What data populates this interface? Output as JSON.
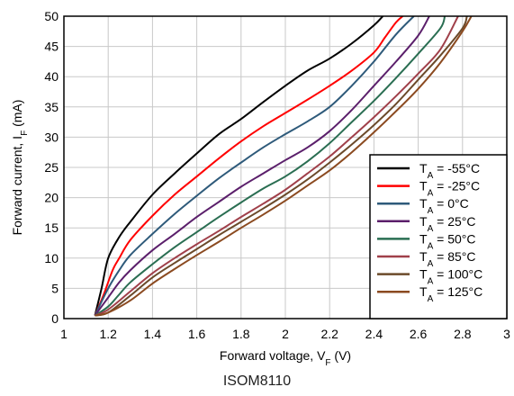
{
  "chart_data": {
    "type": "line",
    "xlabel": "Forward voltage, VF (V)",
    "ylabel": "Forward current, IF (mA)",
    "xlabel_parts": [
      "Forward voltage, V",
      "F",
      " (V)"
    ],
    "ylabel_parts": [
      "Forward current, I",
      "F",
      " (mA)"
    ],
    "xlim": [
      1,
      3
    ],
    "ylim": [
      0,
      50
    ],
    "xticks": [
      "1",
      "1.2",
      "1.4",
      "1.6",
      "1.8",
      "2",
      "2.2",
      "2.4",
      "2.6",
      "2.8",
      "3"
    ],
    "yticks": [
      "0",
      "5",
      "10",
      "15",
      "20",
      "25",
      "30",
      "35",
      "40",
      "45",
      "50"
    ],
    "grid": true,
    "legend_position": "bottom-right",
    "series": [
      {
        "name": "TA = -55°C",
        "label_parts": [
          "T",
          "A",
          " = -55°C"
        ],
        "color": "#000000",
        "x": [
          1.14,
          1.17,
          1.2,
          1.25,
          1.3,
          1.4,
          1.5,
          1.6,
          1.7,
          1.8,
          1.9,
          2.0,
          2.1,
          2.2,
          2.3,
          2.4,
          2.44
        ],
        "y": [
          0.5,
          5,
          10,
          13.5,
          16,
          20.5,
          24,
          27.3,
          30.5,
          33,
          35.8,
          38.5,
          41,
          43,
          45.5,
          48.5,
          50
        ]
      },
      {
        "name": "TA = -25°C",
        "label_parts": [
          "T",
          "A",
          " = -25°C"
        ],
        "color": "#ff0000",
        "x": [
          1.14,
          1.18,
          1.22,
          1.25,
          1.3,
          1.4,
          1.5,
          1.6,
          1.7,
          1.8,
          1.9,
          2.0,
          2.1,
          2.2,
          2.3,
          2.4,
          2.45,
          2.5,
          2.53
        ],
        "y": [
          0.5,
          4,
          8,
          10,
          13,
          17,
          20.5,
          23.5,
          26.5,
          29.3,
          31.8,
          34,
          36.2,
          38.5,
          41,
          44,
          46.5,
          49,
          50
        ]
      },
      {
        "name": "TA = 0°C",
        "label_parts": [
          "T",
          "A",
          " = 0°C"
        ],
        "color": "#2e5a7a",
        "x": [
          1.14,
          1.2,
          1.25,
          1.3,
          1.4,
          1.5,
          1.6,
          1.7,
          1.8,
          1.9,
          2.0,
          2.1,
          2.2,
          2.3,
          2.4,
          2.5,
          2.58
        ],
        "y": [
          0.5,
          5,
          8,
          10.5,
          14,
          17.3,
          20.3,
          23.2,
          25.8,
          28.3,
          30.5,
          32.6,
          35,
          38.5,
          42.5,
          47,
          50
        ]
      },
      {
        "name": "TA = 25°C",
        "label_parts": [
          "T",
          "A",
          " = 25°C"
        ],
        "color": "#5b1f6b",
        "x": [
          1.14,
          1.2,
          1.25,
          1.3,
          1.4,
          1.5,
          1.6,
          1.7,
          1.8,
          1.9,
          2.0,
          2.1,
          2.2,
          2.3,
          2.4,
          2.5,
          2.6,
          2.65
        ],
        "y": [
          0.5,
          3.5,
          6,
          8,
          11.3,
          14,
          16.8,
          19.3,
          21.8,
          24,
          26.2,
          28.3,
          31,
          34.5,
          38.5,
          42.5,
          46.8,
          50
        ]
      },
      {
        "name": "TA = 50°C",
        "label_parts": [
          "T",
          "A",
          " = 50°C"
        ],
        "color": "#2a6e52",
        "x": [
          1.14,
          1.2,
          1.25,
          1.3,
          1.4,
          1.5,
          1.6,
          1.7,
          1.8,
          1.9,
          2.0,
          2.1,
          2.2,
          2.3,
          2.4,
          2.5,
          2.6,
          2.7,
          2.72
        ],
        "y": [
          0.5,
          2,
          4,
          6,
          9,
          11.8,
          14.3,
          16.8,
          19.2,
          21.5,
          23.5,
          26,
          29,
          32.5,
          36,
          39.8,
          43.8,
          48,
          50
        ]
      },
      {
        "name": "TA = 85°C",
        "label_parts": [
          "T",
          "A",
          " = 85°C"
        ],
        "color": "#a0404a",
        "x": [
          1.14,
          1.2,
          1.3,
          1.4,
          1.5,
          1.6,
          1.7,
          1.8,
          1.9,
          2.0,
          2.1,
          2.2,
          2.3,
          2.4,
          2.5,
          2.6,
          2.7,
          2.78
        ],
        "y": [
          0.5,
          1.5,
          4.5,
          7.5,
          10,
          12.3,
          14.5,
          16.8,
          19,
          21.3,
          24,
          26.8,
          30,
          33.3,
          36.8,
          40.5,
          44.5,
          50
        ]
      },
      {
        "name": "TA = 100°C",
        "label_parts": [
          "T",
          "A",
          " = 100°C"
        ],
        "color": "#6b4a2a",
        "x": [
          1.14,
          1.2,
          1.3,
          1.4,
          1.5,
          1.6,
          1.7,
          1.8,
          1.9,
          2.0,
          2.1,
          2.2,
          2.3,
          2.4,
          2.5,
          2.6,
          2.7,
          2.8,
          2.82
        ],
        "y": [
          0.5,
          1,
          3.8,
          6.8,
          9.2,
          11.5,
          13.8,
          16,
          18.2,
          20.5,
          23,
          25.8,
          28.8,
          32,
          35.5,
          39.5,
          43.5,
          48,
          50
        ]
      },
      {
        "name": "TA = 125°C",
        "label_parts": [
          "T",
          "A",
          " = 125°C"
        ],
        "color": "#8b4a20",
        "x": [
          1.14,
          1.2,
          1.3,
          1.4,
          1.5,
          1.6,
          1.7,
          1.8,
          1.9,
          2.0,
          2.1,
          2.2,
          2.3,
          2.4,
          2.5,
          2.6,
          2.7,
          2.8,
          2.84
        ],
        "y": [
          0.5,
          1,
          3,
          5.8,
          8.2,
          10.5,
          12.7,
          15,
          17.2,
          19.5,
          22,
          24.5,
          27.5,
          30.8,
          34.3,
          38,
          42.3,
          47.5,
          50
        ]
      }
    ]
  },
  "caption": "ISOM8110"
}
